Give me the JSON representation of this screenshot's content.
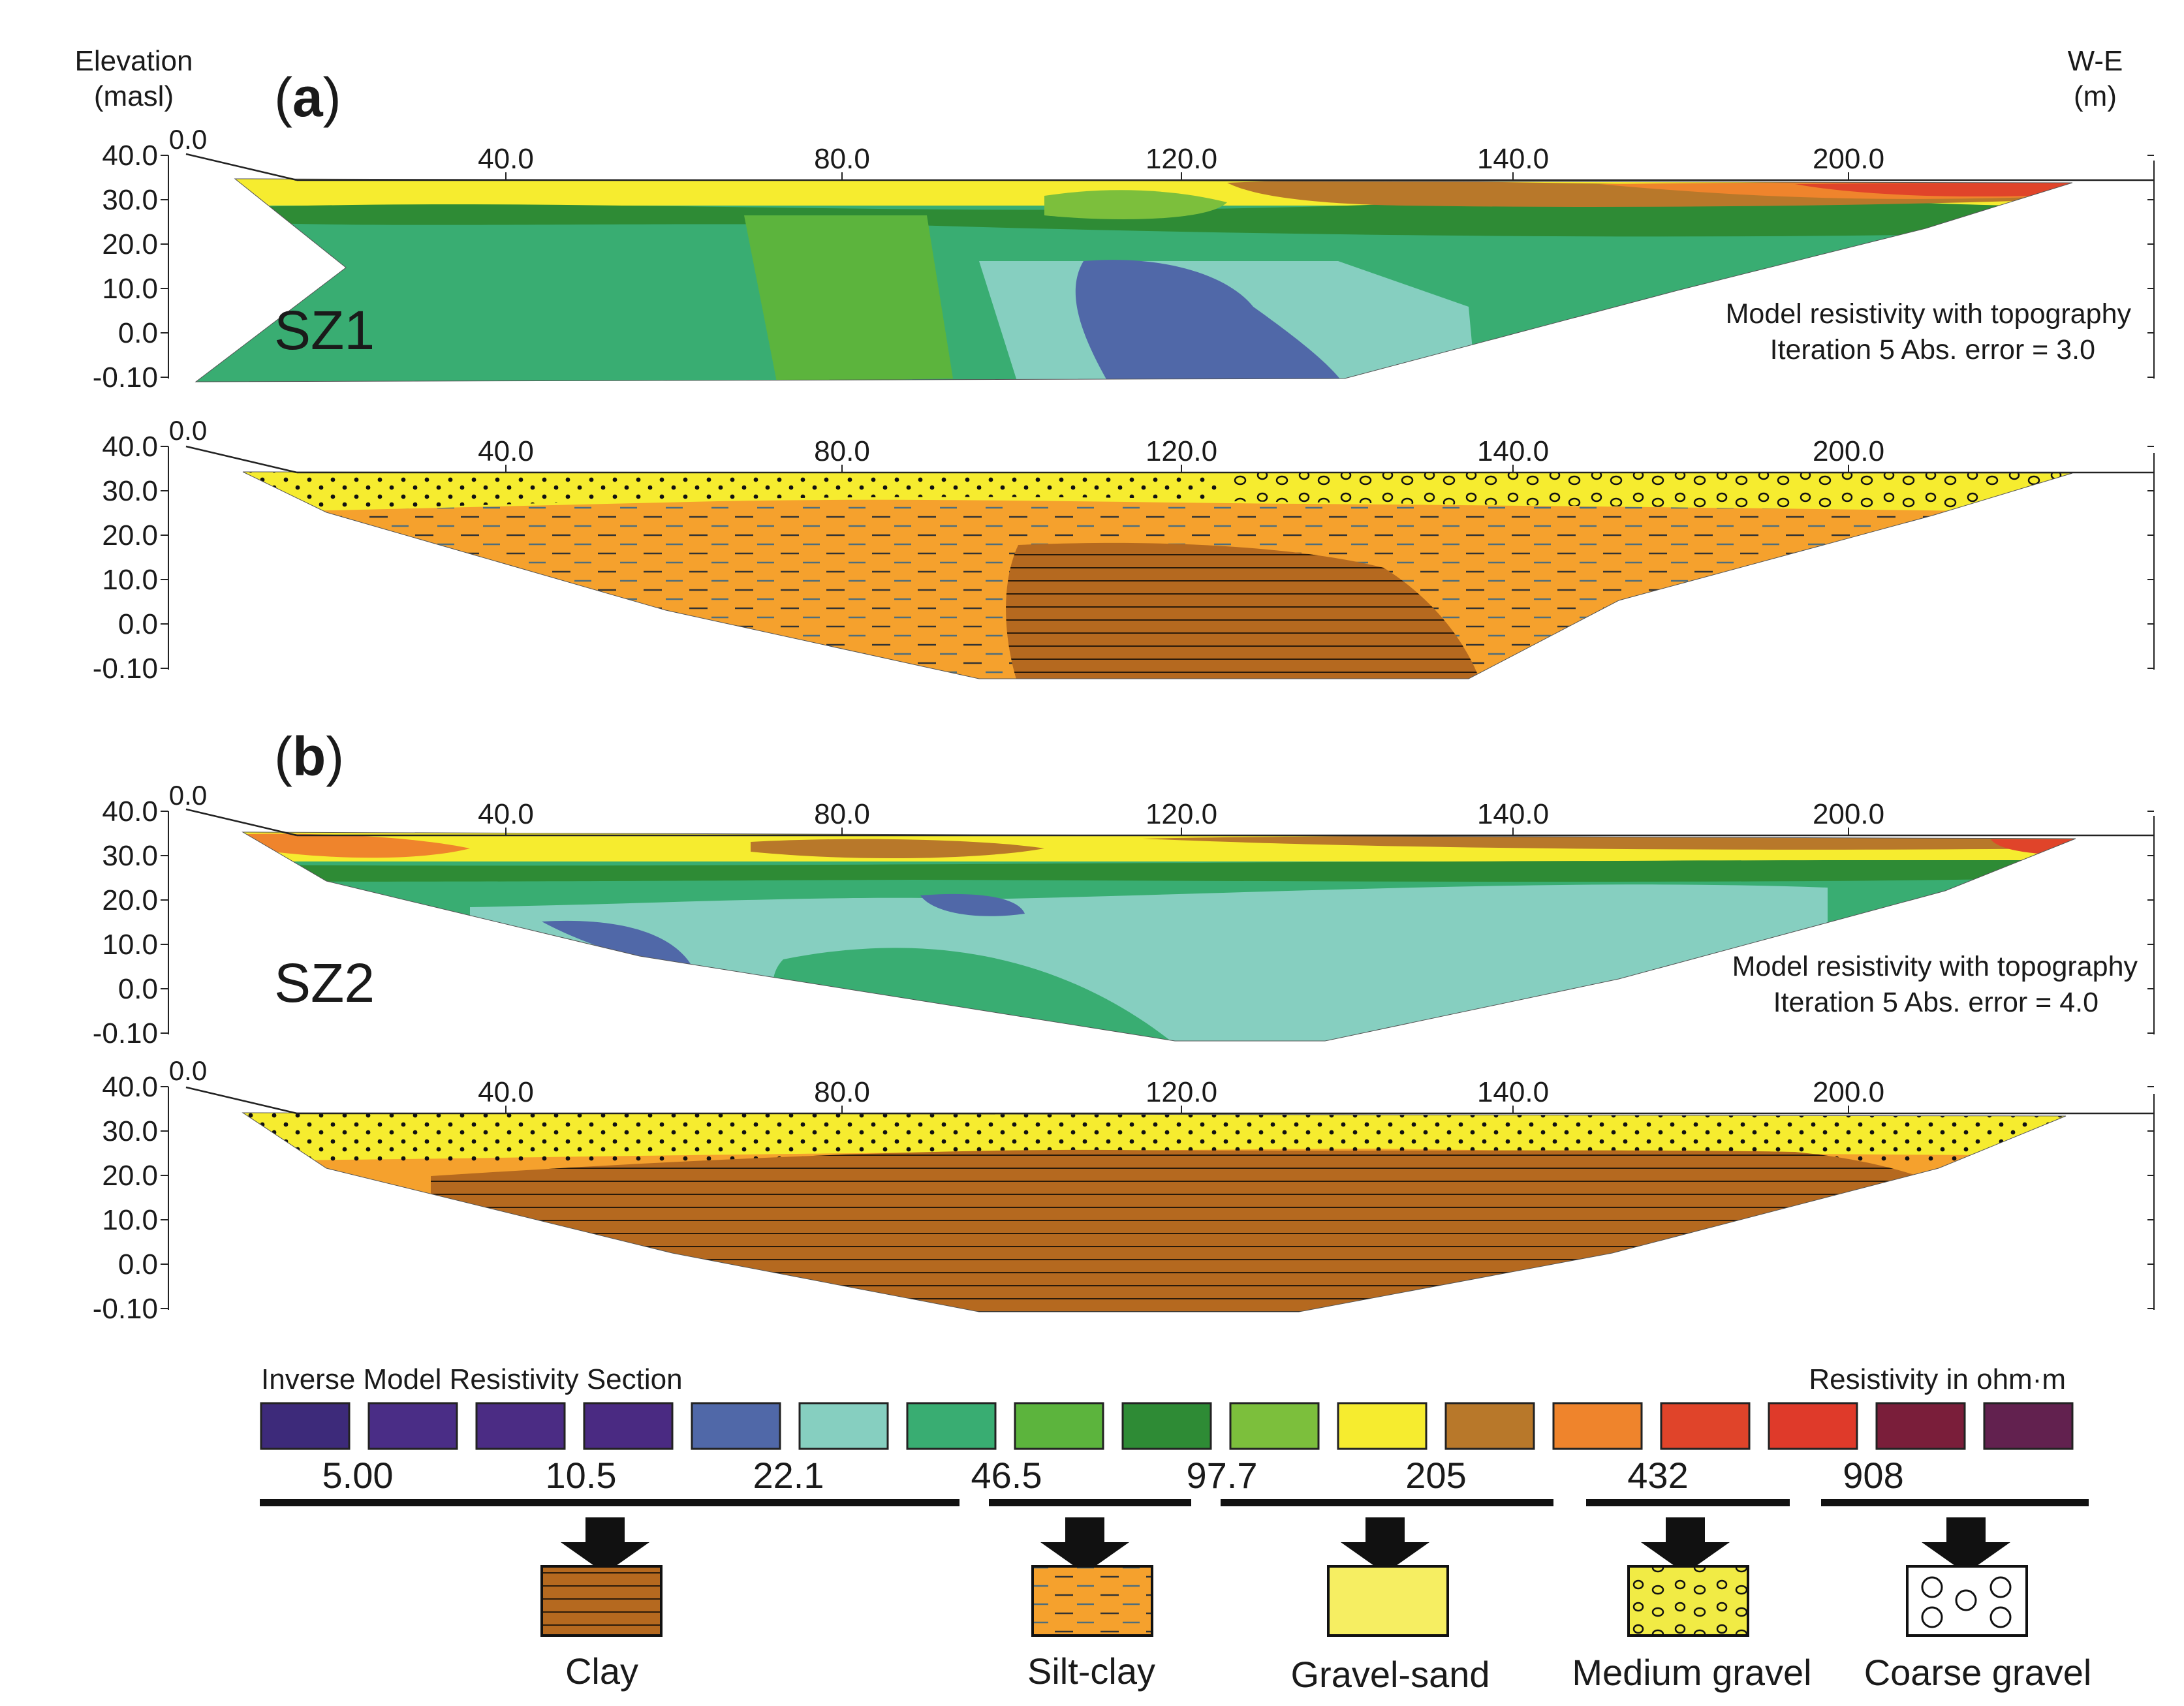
{
  "header": {
    "elevation_label": "Elevation",
    "elevation_unit": "(masl)",
    "direction_label": "W-E",
    "direction_unit": "(m)"
  },
  "panels": [
    {
      "label_open": "(",
      "label_letter": "a",
      "label_close": ")",
      "site": "SZ1",
      "model_line1": "Model resistivity with topography",
      "model_line2": "Iteration 5 Abs. error = 3.0"
    },
    {
      "label_open": "(",
      "label_letter": "b",
      "label_close": ")",
      "site": "SZ2",
      "model_line1": "Model resistivity with topography",
      "model_line2": "Iteration 5 Abs. error = 4.0"
    }
  ],
  "axes": {
    "origin": "0.0",
    "x_ticks": [
      "40.0",
      "80.0",
      "120.0",
      "140.0",
      "200.0"
    ],
    "y_ticks": [
      "40.0",
      "30.0",
      "20.0",
      "10.0",
      "0.0",
      "-0.10"
    ]
  },
  "legend": {
    "title_left": "Inverse Model Resistivity Section",
    "title_right": "Resistivity in ohm·m",
    "swatch_colors": [
      "#3d2a7a",
      "#4a2d86",
      "#4b2c84",
      "#4a2a82",
      "#5068a8",
      "#86cfc0",
      "#39ad72",
      "#5cb43d",
      "#2e8b35",
      "#7cbf3c",
      "#f6ec2f",
      "#b8782a",
      "#ef842c",
      "#e0442a",
      "#df3a2a",
      "#7a1e3a",
      "#62214f"
    ],
    "values": [
      "5.00",
      "10.5",
      "22.1",
      "46.5",
      "97.7",
      "205",
      "432",
      "908"
    ]
  },
  "lithology": [
    {
      "name": "Clay",
      "color": "#b5691f"
    },
    {
      "name": "Silt-clay",
      "color": "#f5a12d"
    },
    {
      "name": "Gravel-sand",
      "color": "#f6ee62"
    },
    {
      "name": "Medium gravel",
      "color": "#f1eb45"
    },
    {
      "name": "Coarse gravel",
      "color": "#ffffff"
    }
  ]
}
